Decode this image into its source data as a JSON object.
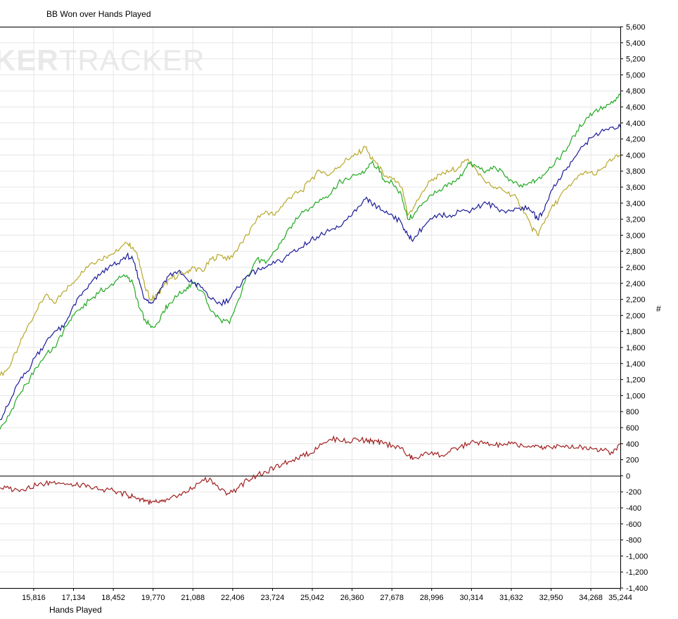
{
  "watermark": {
    "part1": "KER",
    "part2": "TRACKER"
  },
  "chart_data": {
    "type": "line",
    "title": "BB Won over Hands Played",
    "xlabel": "Hands Played",
    "ylabel": "#",
    "xlim": [
      14700,
      35244
    ],
    "ylim": [
      -1400,
      5600
    ],
    "x_ticks": [
      "15,816",
      "17,134",
      "18,452",
      "19,770",
      "21,088",
      "22,406",
      "23,724",
      "25,042",
      "26,360",
      "27,678",
      "28,996",
      "30,314",
      "31,632",
      "32,950",
      "34,268",
      "35,244"
    ],
    "y_ticks": [
      "5,600",
      "5,400",
      "5,200",
      "5,000",
      "4,800",
      "4,600",
      "4,400",
      "4,200",
      "4,000",
      "3,800",
      "3,600",
      "3,400",
      "3,200",
      "3,000",
      "2,800",
      "2,600",
      "2,400",
      "2,200",
      "2,000",
      "1,800",
      "1,600",
      "1,400",
      "1,200",
      "1,000",
      "800",
      "600",
      "400",
      "200",
      "0",
      "-200",
      "-400",
      "-600",
      "-800",
      "-1,000",
      "-1,200",
      "-1,400"
    ],
    "grid": true,
    "series": [
      {
        "color": "#b8a82a",
        "x": [
          14700,
          15000,
          15300,
          15600,
          15900,
          16200,
          16500,
          16800,
          17100,
          17400,
          17700,
          18000,
          18300,
          18600,
          18900,
          19100,
          19300,
          19500,
          19700,
          19900,
          20100,
          20300,
          20600,
          20900,
          21100,
          21400,
          21700,
          22000,
          22300,
          22600,
          22900,
          23200,
          23500,
          23800,
          24100,
          24400,
          24700,
          25000,
          25300,
          25600,
          25900,
          26200,
          26500,
          26800,
          27000,
          27200,
          27400,
          27700,
          28000,
          28200,
          28400,
          28700,
          29000,
          29300,
          29600,
          29900,
          30200,
          30500,
          30800,
          31100,
          31400,
          31700,
          32000,
          32300,
          32500,
          32700,
          32900,
          33200,
          33500,
          33800,
          34100,
          34400,
          34700,
          35000,
          35244
        ],
        "y": [
          1250,
          1350,
          1600,
          1850,
          2050,
          2250,
          2150,
          2300,
          2400,
          2550,
          2650,
          2700,
          2750,
          2800,
          2900,
          2850,
          2700,
          2350,
          2200,
          2250,
          2350,
          2450,
          2500,
          2550,
          2600,
          2550,
          2700,
          2750,
          2700,
          2850,
          3000,
          3200,
          3300,
          3250,
          3400,
          3500,
          3550,
          3700,
          3800,
          3750,
          3850,
          3950,
          4000,
          4100,
          3950,
          3900,
          3750,
          3700,
          3600,
          3250,
          3350,
          3550,
          3700,
          3750,
          3800,
          3850,
          3950,
          3800,
          3650,
          3600,
          3550,
          3500,
          3350,
          3100,
          3000,
          3150,
          3300,
          3450,
          3600,
          3700,
          3800,
          3750,
          3850,
          3950,
          4000
        ]
      },
      {
        "color": "#22aa22",
        "x": [
          14700,
          15000,
          15300,
          15600,
          15900,
          16200,
          16500,
          16800,
          17100,
          17400,
          17700,
          18000,
          18300,
          18600,
          18900,
          19100,
          19300,
          19500,
          19700,
          19900,
          20100,
          20300,
          20600,
          20900,
          21100,
          21400,
          21700,
          22000,
          22300,
          22600,
          22900,
          23200,
          23500,
          23800,
          24100,
          24400,
          24700,
          25000,
          25300,
          25600,
          25900,
          26200,
          26500,
          26800,
          27000,
          27200,
          27400,
          27700,
          28000,
          28200,
          28400,
          28700,
          29000,
          29300,
          29600,
          29900,
          30200,
          30500,
          30800,
          31100,
          31400,
          31700,
          32000,
          32300,
          32500,
          32700,
          32900,
          33200,
          33500,
          33800,
          34100,
          34400,
          34700,
          35000,
          35244
        ],
        "y": [
          580,
          750,
          1000,
          1150,
          1350,
          1500,
          1600,
          1800,
          2000,
          2100,
          2200,
          2300,
          2350,
          2450,
          2500,
          2400,
          2100,
          1950,
          1850,
          1900,
          2050,
          2150,
          2250,
          2350,
          2400,
          2300,
          2050,
          1950,
          1900,
          2200,
          2500,
          2700,
          2650,
          2800,
          2950,
          3150,
          3300,
          3350,
          3450,
          3500,
          3650,
          3700,
          3750,
          3800,
          3900,
          3850,
          3700,
          3650,
          3500,
          3200,
          3250,
          3400,
          3500,
          3550,
          3650,
          3700,
          3900,
          3850,
          3800,
          3850,
          3750,
          3650,
          3600,
          3650,
          3700,
          3750,
          3850,
          3950,
          4100,
          4300,
          4450,
          4550,
          4600,
          4650,
          4750
        ]
      },
      {
        "color": "#1c1c9a",
        "x": [
          14700,
          15000,
          15300,
          15600,
          15900,
          16200,
          16500,
          16800,
          17100,
          17400,
          17700,
          18000,
          18300,
          18600,
          18900,
          19100,
          19300,
          19500,
          19700,
          19900,
          20100,
          20300,
          20600,
          20900,
          21100,
          21400,
          21700,
          22000,
          22300,
          22600,
          22900,
          23200,
          23500,
          23800,
          24100,
          24400,
          24700,
          25000,
          25300,
          25600,
          25900,
          26200,
          26500,
          26800,
          27000,
          27200,
          27400,
          27700,
          28000,
          28200,
          28400,
          28700,
          29000,
          29300,
          29600,
          29900,
          30200,
          30500,
          30800,
          31100,
          31400,
          31700,
          32000,
          32300,
          32500,
          32700,
          32900,
          33200,
          33500,
          33800,
          34100,
          34400,
          34700,
          35000,
          35244
        ],
        "y": [
          700,
          900,
          1150,
          1300,
          1500,
          1650,
          1800,
          1850,
          2100,
          2250,
          2400,
          2500,
          2600,
          2650,
          2750,
          2700,
          2450,
          2200,
          2150,
          2250,
          2400,
          2500,
          2550,
          2450,
          2400,
          2350,
          2200,
          2150,
          2200,
          2350,
          2500,
          2550,
          2600,
          2650,
          2700,
          2800,
          2850,
          2950,
          3000,
          3050,
          3100,
          3200,
          3300,
          3450,
          3400,
          3350,
          3300,
          3250,
          3150,
          3000,
          2950,
          3100,
          3200,
          3250,
          3250,
          3300,
          3300,
          3350,
          3400,
          3350,
          3300,
          3300,
          3350,
          3300,
          3200,
          3300,
          3500,
          3700,
          3850,
          4000,
          4150,
          4250,
          4300,
          4350,
          4350
        ]
      },
      {
        "color": "#a02020",
        "x": [
          14700,
          15000,
          15300,
          15600,
          15900,
          16200,
          16500,
          16800,
          17100,
          17400,
          17700,
          18000,
          18300,
          18600,
          18900,
          19100,
          19300,
          19500,
          19700,
          19900,
          20100,
          20300,
          20600,
          20900,
          21100,
          21400,
          21700,
          22000,
          22300,
          22600,
          22900,
          23200,
          23500,
          23800,
          24100,
          24400,
          24700,
          25000,
          25300,
          25600,
          25900,
          26200,
          26500,
          26800,
          27000,
          27200,
          27400,
          27700,
          28000,
          28200,
          28400,
          28700,
          29000,
          29300,
          29600,
          29900,
          30200,
          30500,
          30800,
          31100,
          31400,
          31700,
          32000,
          32300,
          32500,
          32700,
          32900,
          33200,
          33500,
          33800,
          34100,
          34400,
          34700,
          35000,
          35244
        ],
        "y": [
          -150,
          -160,
          -180,
          -150,
          -120,
          -100,
          -70,
          -90,
          -130,
          -110,
          -150,
          -170,
          -170,
          -200,
          -240,
          -260,
          -280,
          -300,
          -340,
          -330,
          -320,
          -300,
          -250,
          -200,
          -150,
          -50,
          -50,
          -180,
          -220,
          -150,
          -50,
          0,
          50,
          100,
          150,
          200,
          250,
          280,
          400,
          450,
          460,
          420,
          460,
          440,
          430,
          420,
          400,
          380,
          350,
          250,
          220,
          250,
          300,
          250,
          300,
          350,
          400,
          420,
          400,
          380,
          400,
          400,
          380,
          360,
          380,
          340,
          360,
          380,
          370,
          350,
          360,
          340,
          320,
          280,
          400
        ]
      }
    ]
  }
}
